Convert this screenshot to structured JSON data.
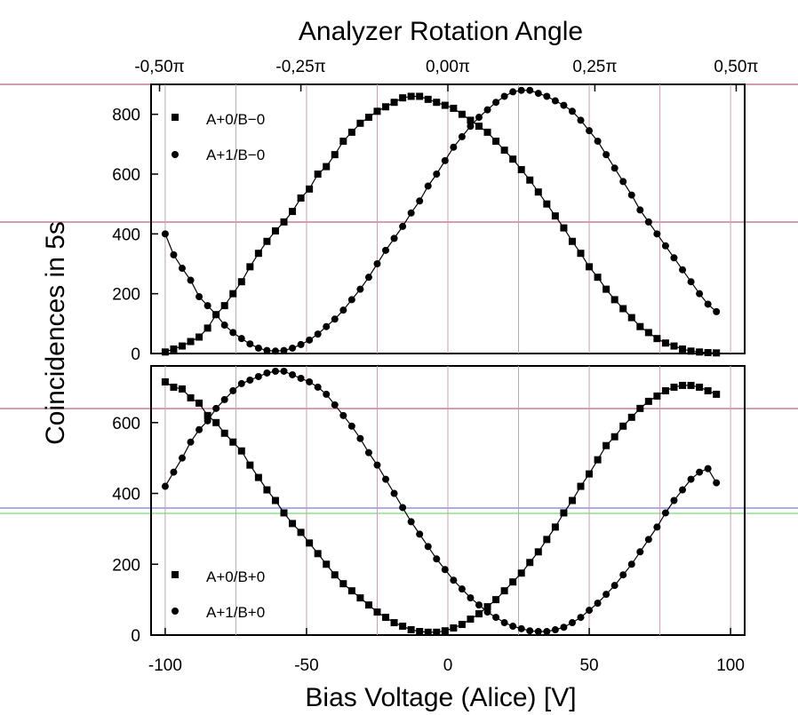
{
  "chart_data": [
    {
      "type": "scatter",
      "panel": "top",
      "xlabel": "Bias Voltage (Alice) [V]",
      "ylabel": "Coincidences in 5s",
      "top_axis_title": "Analyzer Rotation Angle",
      "top_ticks": [
        "-0,50π",
        "-0,25π",
        "0,00π",
        "0,25π",
        "0,50π"
      ],
      "top_tick_values": [
        -102,
        -52,
        0,
        52,
        102
      ],
      "xlim": [
        -105,
        105
      ],
      "ylim": [
        0,
        900
      ],
      "yticks": [
        0,
        200,
        400,
        600,
        800
      ],
      "grid": true,
      "legend_position": "top-left",
      "series": [
        {
          "name": "A+0/B−0",
          "marker": "square",
          "x": [
            -100,
            -97,
            -94,
            -91,
            -88,
            -85,
            -82,
            -79,
            -76,
            -73,
            -70,
            -67,
            -64,
            -61,
            -58,
            -55,
            -52,
            -49,
            -46,
            -43,
            -40,
            -37,
            -34,
            -31,
            -28,
            -25,
            -22,
            -19,
            -16,
            -13,
            -10,
            -7,
            -4,
            -1,
            2,
            5,
            8,
            11,
            14,
            17,
            20,
            23,
            26,
            29,
            32,
            35,
            38,
            41,
            44,
            47,
            50,
            53,
            56,
            59,
            62,
            65,
            68,
            71,
            74,
            77,
            80,
            83,
            86,
            89,
            92,
            95
          ],
          "y": [
            5,
            15,
            25,
            40,
            55,
            85,
            130,
            160,
            200,
            240,
            290,
            335,
            375,
            410,
            440,
            475,
            520,
            550,
            600,
            625,
            665,
            710,
            740,
            770,
            790,
            810,
            825,
            840,
            855,
            860,
            860,
            850,
            840,
            830,
            820,
            800,
            780,
            760,
            740,
            710,
            680,
            650,
            615,
            580,
            540,
            500,
            460,
            420,
            375,
            335,
            290,
            255,
            215,
            180,
            150,
            120,
            90,
            70,
            50,
            35,
            25,
            15,
            8,
            5,
            3,
            2
          ]
        },
        {
          "name": "A+1/B−0",
          "marker": "circle",
          "x": [
            -100,
            -97,
            -94,
            -91,
            -88,
            -85,
            -82,
            -79,
            -76,
            -73,
            -70,
            -67,
            -64,
            -61,
            -58,
            -55,
            -52,
            -49,
            -46,
            -43,
            -40,
            -37,
            -34,
            -31,
            -28,
            -25,
            -22,
            -19,
            -16,
            -13,
            -10,
            -7,
            -4,
            -1,
            2,
            5,
            8,
            11,
            14,
            17,
            20,
            23,
            26,
            29,
            32,
            35,
            38,
            41,
            44,
            47,
            50,
            53,
            56,
            59,
            62,
            65,
            68,
            71,
            74,
            77,
            80,
            83,
            86,
            89,
            92,
            95
          ],
          "y": [
            400,
            330,
            285,
            245,
            190,
            160,
            130,
            95,
            70,
            50,
            32,
            18,
            10,
            8,
            10,
            18,
            30,
            45,
            65,
            90,
            115,
            145,
            180,
            215,
            255,
            300,
            345,
            385,
            425,
            470,
            510,
            560,
            600,
            645,
            690,
            725,
            760,
            790,
            815,
            840,
            860,
            875,
            880,
            880,
            870,
            860,
            845,
            830,
            810,
            780,
            745,
            710,
            665,
            620,
            575,
            530,
            480,
            440,
            400,
            360,
            320,
            280,
            240,
            200,
            165,
            140
          ]
        }
      ]
    },
    {
      "type": "scatter",
      "panel": "bottom",
      "xlabel": "Bias Voltage (Alice) [V]",
      "ylabel": "Coincidences in 5s",
      "xlim": [
        -105,
        105
      ],
      "ylim": [
        0,
        760
      ],
      "xticks": [
        -100,
        -50,
        0,
        50,
        100
      ],
      "yticks": [
        0,
        200,
        400,
        600
      ],
      "grid": true,
      "legend_position": "bottom-left",
      "series": [
        {
          "name": "A+0/B+0",
          "marker": "square",
          "x": [
            -100,
            -97,
            -94,
            -91,
            -88,
            -85,
            -82,
            -79,
            -76,
            -73,
            -70,
            -67,
            -64,
            -61,
            -58,
            -55,
            -52,
            -49,
            -46,
            -43,
            -40,
            -37,
            -34,
            -31,
            -28,
            -25,
            -22,
            -19,
            -16,
            -13,
            -10,
            -7,
            -4,
            -1,
            2,
            5,
            8,
            11,
            14,
            17,
            20,
            23,
            26,
            29,
            32,
            35,
            38,
            41,
            44,
            47,
            50,
            53,
            56,
            59,
            62,
            65,
            68,
            71,
            74,
            77,
            80,
            83,
            86,
            89,
            92,
            95
          ],
          "y": [
            715,
            700,
            695,
            670,
            655,
            620,
            600,
            570,
            545,
            520,
            480,
            445,
            410,
            380,
            345,
            315,
            290,
            260,
            230,
            200,
            170,
            145,
            125,
            105,
            85,
            65,
            50,
            35,
            25,
            15,
            10,
            8,
            8,
            12,
            20,
            30,
            45,
            60,
            80,
            100,
            125,
            150,
            175,
            205,
            235,
            270,
            305,
            345,
            380,
            420,
            455,
            495,
            535,
            560,
            590,
            615,
            640,
            660,
            675,
            690,
            700,
            705,
            705,
            700,
            690,
            680
          ]
        },
        {
          "name": "A+1/B+0",
          "marker": "circle",
          "x": [
            -100,
            -97,
            -94,
            -91,
            -88,
            -85,
            -82,
            -79,
            -76,
            -73,
            -70,
            -67,
            -64,
            -61,
            -58,
            -55,
            -52,
            -49,
            -46,
            -43,
            -40,
            -37,
            -34,
            -31,
            -28,
            -25,
            -22,
            -19,
            -16,
            -13,
            -10,
            -7,
            -4,
            -1,
            2,
            5,
            8,
            11,
            14,
            17,
            20,
            23,
            26,
            29,
            32,
            35,
            38,
            41,
            44,
            47,
            50,
            53,
            56,
            59,
            62,
            65,
            68,
            71,
            74,
            77,
            80,
            83,
            86,
            89,
            92,
            95
          ],
          "y": [
            420,
            460,
            500,
            545,
            580,
            605,
            640,
            665,
            690,
            710,
            720,
            730,
            740,
            745,
            745,
            735,
            725,
            715,
            700,
            680,
            650,
            620,
            590,
            555,
            515,
            480,
            440,
            400,
            360,
            320,
            285,
            250,
            215,
            185,
            155,
            130,
            105,
            85,
            65,
            50,
            35,
            25,
            18,
            12,
            10,
            10,
            15,
            22,
            35,
            50,
            70,
            90,
            115,
            140,
            170,
            200,
            235,
            270,
            305,
            345,
            380,
            410,
            440,
            460,
            470,
            430
          ]
        }
      ]
    }
  ]
}
